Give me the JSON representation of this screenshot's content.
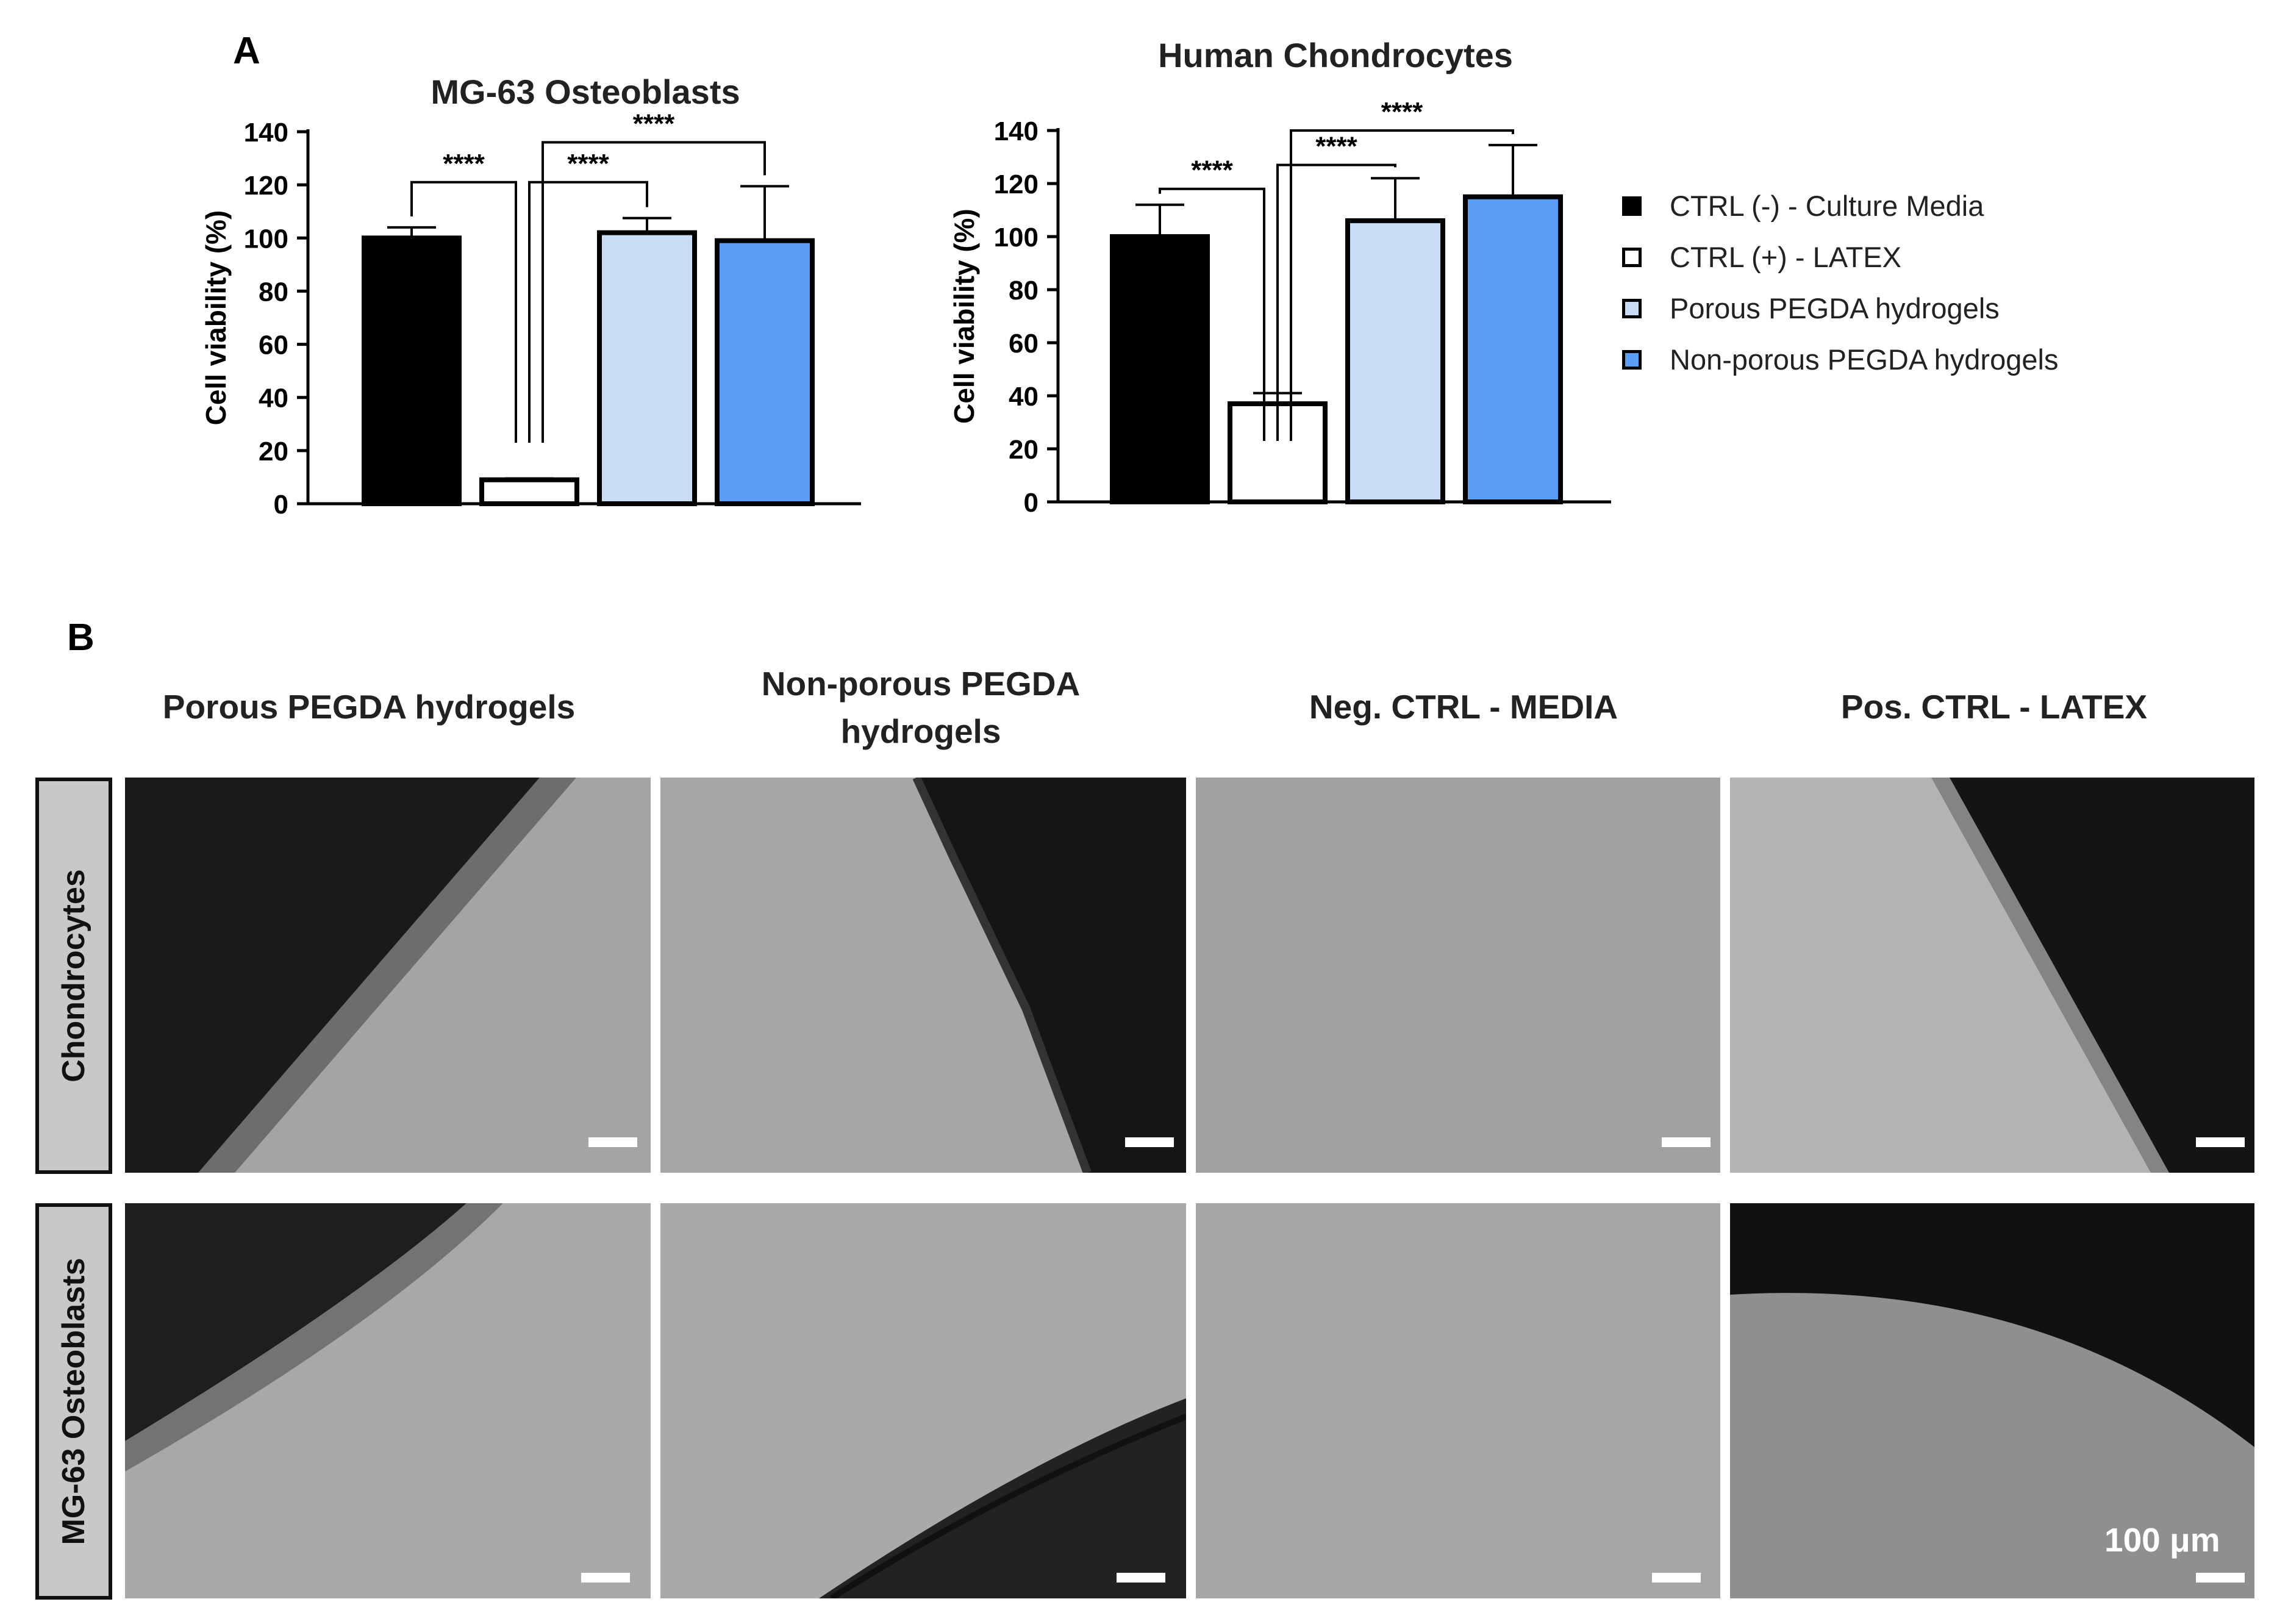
{
  "panel_a_label": "A",
  "panel_b_label": "B",
  "colors": {
    "ctrl_neg": "#000000",
    "ctrl_pos": "#ffffff",
    "porous": "#c9ddf7",
    "nonporous": "#5b9ef5"
  },
  "chart_data": [
    {
      "type": "bar",
      "title": "MG-63 Osteoblasts",
      "ylabel": "Cell viability (%)",
      "xlabel": "",
      "ylim": [
        0,
        140
      ],
      "yticks": [
        "0",
        "20",
        "40",
        "60",
        "80",
        "100",
        "120",
        "140"
      ],
      "categories": [
        "CTRL (-) - Culture Media",
        "CTRL (+) - LATEX",
        "Porous PEGDA hydrogels",
        "Non-porous PEGDA hydrogels"
      ],
      "values": [
        100,
        9,
        102,
        99
      ],
      "errors": [
        4,
        0.5,
        5.5,
        20.5
      ],
      "significance": [
        {
          "from": 0,
          "to": 1,
          "label": "****"
        },
        {
          "from": 1,
          "to": 2,
          "label": "****"
        },
        {
          "from": 1,
          "to": 3,
          "label": "****"
        }
      ]
    },
    {
      "type": "bar",
      "title": "Human Chondrocytes",
      "ylabel": "Cell viability (%)",
      "xlabel": "",
      "ylim": [
        0,
        140
      ],
      "yticks": [
        "0",
        "20",
        "40",
        "60",
        "80",
        "100",
        "120",
        "140"
      ],
      "categories": [
        "CTRL (-) - Culture Media",
        "CTRL (+) - LATEX",
        "Porous PEGDA hydrogels",
        "Non-porous PEGDA hydrogels"
      ],
      "values": [
        100,
        37,
        106,
        115
      ],
      "errors": [
        12,
        4,
        16,
        19.5
      ],
      "significance": [
        {
          "from": 0,
          "to": 1,
          "label": "****"
        },
        {
          "from": 1,
          "to": 2,
          "label": "****"
        },
        {
          "from": 1,
          "to": 3,
          "label": "****"
        }
      ]
    }
  ],
  "legend": [
    {
      "label": "CTRL (-) - Culture Media",
      "color": "#000000"
    },
    {
      "label": "CTRL (+) - LATEX",
      "color": "#ffffff"
    },
    {
      "label": "Porous PEGDA hydrogels",
      "color": "#c9ddf7"
    },
    {
      "label": "Non-porous PEGDA hydrogels",
      "color": "#5b9ef5"
    }
  ],
  "micrographs": {
    "columns": [
      "Porous PEGDA hydrogels",
      "Non-porous PEGDA hydrogels",
      "Neg. CTRL - MEDIA",
      "Pos. CTRL - LATEX"
    ],
    "rows": [
      "Chondrocytes",
      "MG-63 Osteoblasts"
    ],
    "scale_label": "100 μm"
  }
}
